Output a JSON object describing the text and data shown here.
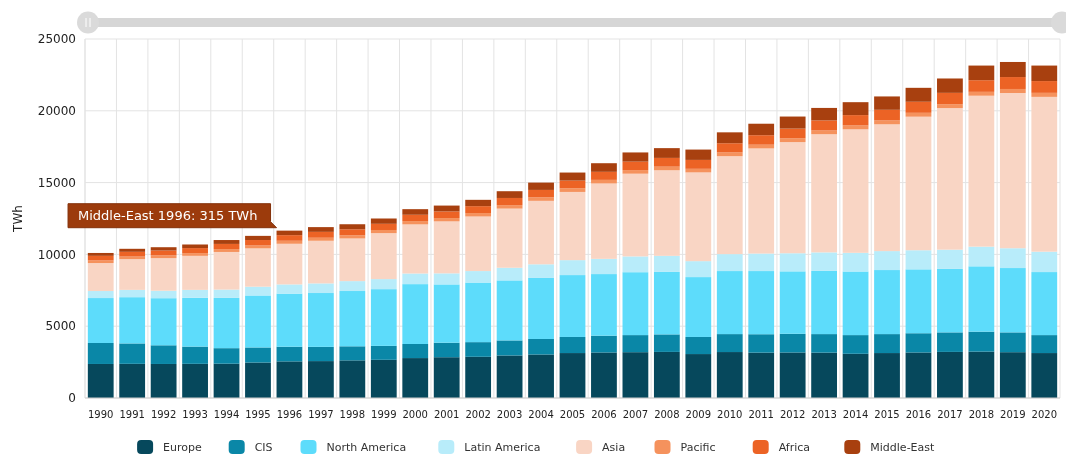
{
  "chart_data": {
    "type": "bar",
    "stacked": true,
    "ylabel": "TWh",
    "categories": [
      "1990",
      "1991",
      "1992",
      "1993",
      "1994",
      "1995",
      "1996",
      "1997",
      "1998",
      "1999",
      "2000",
      "2001",
      "2002",
      "2003",
      "2004",
      "2005",
      "2006",
      "2007",
      "2008",
      "2009",
      "2010",
      "2011",
      "2012",
      "2013",
      "2014",
      "2015",
      "2016",
      "2017",
      "2018",
      "2019",
      "2020"
    ],
    "series": [
      {
        "name": "Europe",
        "color": "#06485c",
        "values": [
          2370,
          2380,
          2370,
          2380,
          2390,
          2470,
          2550,
          2570,
          2620,
          2660,
          2780,
          2840,
          2870,
          2960,
          3030,
          3130,
          3170,
          3190,
          3210,
          3060,
          3200,
          3160,
          3170,
          3160,
          3080,
          3130,
          3170,
          3210,
          3230,
          3190,
          3130
        ]
      },
      {
        "name": "CIS",
        "color": "#0a87a7",
        "values": [
          1460,
          1420,
          1300,
          1200,
          1080,
          1050,
          1020,
          990,
          980,
          970,
          980,
          1010,
          1020,
          1050,
          1080,
          1120,
          1170,
          1190,
          1220,
          1190,
          1250,
          1280,
          1300,
          1290,
          1300,
          1320,
          1340,
          1360,
          1390,
          1380,
          1250
        ]
      },
      {
        "name": "North America",
        "color": "#5ddcfb",
        "values": [
          3130,
          3220,
          3280,
          3400,
          3500,
          3620,
          3700,
          3750,
          3850,
          3950,
          4170,
          4060,
          4150,
          4180,
          4250,
          4310,
          4290,
          4380,
          4350,
          4170,
          4390,
          4400,
          4350,
          4400,
          4430,
          4460,
          4450,
          4420,
          4550,
          4480,
          4390
        ]
      },
      {
        "name": "Latin America",
        "color": "#b8ecfa",
        "values": [
          490,
          510,
          520,
          550,
          580,
          610,
          640,
          670,
          690,
          700,
          740,
          770,
          800,
          880,
          950,
          1040,
          1060,
          1100,
          1120,
          1110,
          1180,
          1220,
          1260,
          1290,
          1300,
          1320,
          1330,
          1340,
          1370,
          1380,
          1420
        ]
      },
      {
        "name": "Asia",
        "color": "#f9d5c4",
        "values": [
          1950,
          2140,
          2270,
          2370,
          2620,
          2670,
          2830,
          2970,
          2970,
          3200,
          3420,
          3620,
          3800,
          4120,
          4420,
          4750,
          5250,
          5760,
          5960,
          6180,
          6820,
          7320,
          7740,
          8230,
          8600,
          8830,
          9300,
          9860,
          10510,
          10810,
          10780
        ]
      },
      {
        "name": "Pacific",
        "color": "#f5925d",
        "values": [
          180,
          180,
          190,
          190,
          200,
          200,
          210,
          210,
          220,
          220,
          230,
          230,
          240,
          240,
          240,
          250,
          250,
          250,
          250,
          250,
          260,
          260,
          260,
          260,
          270,
          270,
          270,
          270,
          270,
          280,
          280
        ]
      },
      {
        "name": "Africa",
        "color": "#ec6325",
        "values": [
          320,
          330,
          340,
          350,
          360,
          380,
          390,
          410,
          420,
          430,
          440,
          460,
          480,
          500,
          520,
          540,
          560,
          590,
          610,
          620,
          640,
          660,
          680,
          700,
          720,
          740,
          770,
          790,
          810,
          830,
          820
        ]
      },
      {
        "name": "Middle-East",
        "color": "#a8400f",
        "values": [
          200,
          210,
          230,
          250,
          270,
          290,
          315,
          330,
          350,
          370,
          390,
          410,
          440,
          470,
          510,
          560,
          600,
          640,
          680,
          720,
          760,
          800,
          840,
          870,
          900,
          930,
          970,
          1000,
          1020,
          1050,
          1080
        ]
      }
    ],
    "ylim": [
      0,
      25000
    ],
    "yticks": [
      0,
      5000,
      10000,
      15000,
      20000,
      25000
    ],
    "grid": true,
    "legend": "bottom",
    "annotations": [
      {
        "text": "Middle-East 1996: 315 TWh",
        "x": "1996",
        "y": 11650
      }
    ]
  }
}
